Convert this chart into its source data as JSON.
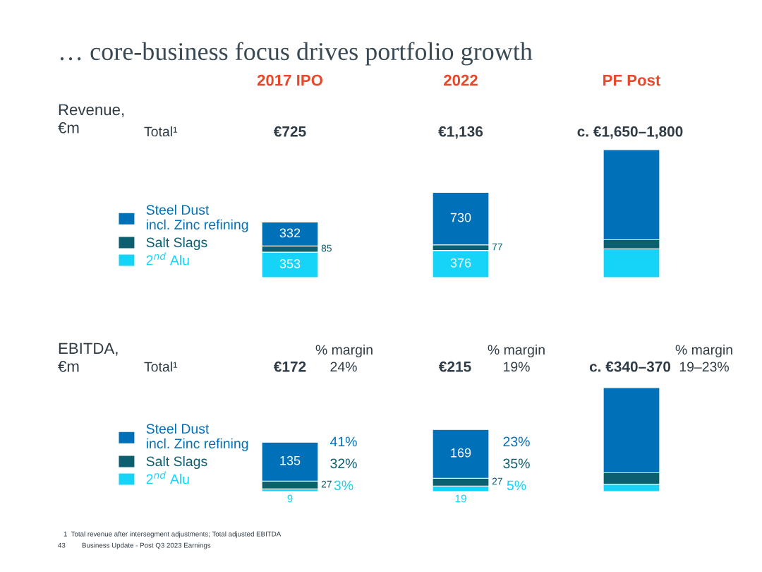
{
  "chart_data": [
    {
      "type": "bar",
      "title": "… core-business focus drives portfolio growth",
      "ylabel": "Revenue,\n€m",
      "categories": [
        "2017 IPO",
        "2022",
        "PF Post"
      ],
      "stacked": true,
      "tick_labels": "x",
      "legend": "left",
      "series": [
        {
          "name": "2$^{nd}$ Alu",
          "color": "#16d4f7",
          "values": [
            353,
            376,
            400
          ],
          "value_labels": [
            "353",
            "376",
            null
          ]
        },
        {
          "name": "Salt Slags",
          "color": "#0b5f6e",
          "values": [
            85,
            77,
            125
          ],
          "value_labels": [
            "85",
            "77",
            null
          ]
        },
        {
          "name": "Steel Dust\nincl. Zinc refining",
          "color": "#0070b8",
          "values": [
            332,
            730,
            1250
          ],
          "value_labels": [
            "332",
            "730",
            null
          ]
        }
      ],
      "annotations": [
        "Total¹",
        "€725",
        "€1,136",
        "c. €1,650–1,800"
      ]
    },
    {
      "type": "bar",
      "ylabel": "EBITDA,\n€m",
      "categories": [
        null,
        null,
        null
      ],
      "stacked": true,
      "tick_labels": false,
      "legend": "left",
      "series": [
        {
          "name": "2$^{nd}$ Alu",
          "color": "#16d4f7",
          "values": [
            9,
            19,
            25
          ],
          "value_labels": [
            "9",
            "19",
            null
          ]
        },
        {
          "name": "Salt Slags",
          "color": "#0b5f6e",
          "values": [
            27,
            27,
            40
          ],
          "value_labels": [
            "27",
            "27",
            null
          ]
        },
        {
          "name": "Steel Dust\nincl. Zinc refining",
          "color": "#0070b8",
          "values": [
            135,
            169,
            295
          ],
          "value_labels": [
            "135",
            "169",
            null
          ]
        }
      ],
      "annotations": [
        "Total¹",
        "€172",
        "€215",
        "c. €340–370",
        "% margin",
        "24%",
        "41%",
        "32%",
        "3%",
        "% margin",
        "19%",
        "23%",
        "35%",
        "5%",
        "% margin",
        "19–23%",
        "1  Total revenue after intersegment adjustments; Total adjusted EBITDA",
        "43",
        "Business Update - Post Q3 2023 Earnings"
      ]
    }
  ]
}
